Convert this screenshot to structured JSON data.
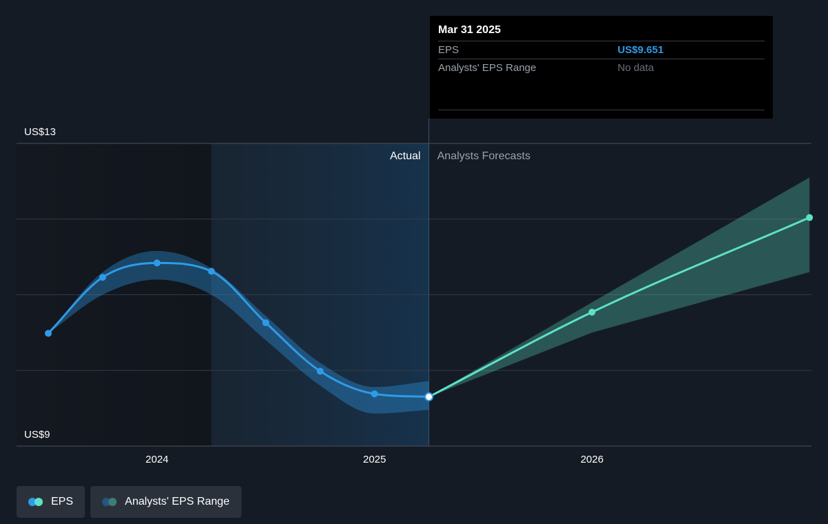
{
  "chart_data": {
    "type": "line",
    "y_axis": {
      "min": 9,
      "max": 13,
      "top_label": "US$13",
      "bottom_label": "US$9"
    },
    "x_axis": {
      "ticks": [
        {
          "label": "2024",
          "t": 2024.0
        },
        {
          "label": "2025",
          "t": 2025.0
        },
        {
          "label": "2026",
          "t": 2026.0
        }
      ]
    },
    "gridlines": [
      13,
      12,
      11,
      10,
      9
    ],
    "region_labels": {
      "actual": "Actual",
      "forecast": "Analysts Forecasts"
    },
    "highlight_start": 2024.25,
    "divider": 2025.25,
    "series": [
      {
        "name": "EPS",
        "kind": "actual",
        "color": "#2f9be8",
        "points": [
          {
            "t": 2023.5,
            "y": 10.49
          },
          {
            "t": 2023.75,
            "y": 11.23
          },
          {
            "t": 2024.0,
            "y": 11.42
          },
          {
            "t": 2024.25,
            "y": 11.31
          },
          {
            "t": 2024.5,
            "y": 10.63
          },
          {
            "t": 2024.75,
            "y": 9.99
          },
          {
            "t": 2025.0,
            "y": 9.69
          },
          {
            "t": 2025.25,
            "y": 9.651
          }
        ]
      },
      {
        "name": "EPS",
        "kind": "forecast",
        "color": "#5ee0c8",
        "points": [
          {
            "t": 2025.25,
            "y": 9.651
          },
          {
            "t": 2026.0,
            "y": 10.77
          },
          {
            "t": 2027.0,
            "y": 12.02
          }
        ]
      }
    ],
    "ranges": [
      {
        "name": "Analysts' EPS Range",
        "kind": "actual",
        "color": "#2f9be8",
        "points": [
          {
            "t": 2023.5,
            "low": 10.49,
            "high": 10.49
          },
          {
            "t": 2023.75,
            "low": 11.0,
            "high": 11.3
          },
          {
            "t": 2024.0,
            "low": 11.2,
            "high": 11.58
          },
          {
            "t": 2024.25,
            "low": 11.0,
            "high": 11.35
          },
          {
            "t": 2024.5,
            "low": 10.4,
            "high": 10.72
          },
          {
            "t": 2024.75,
            "low": 9.8,
            "high": 10.1
          },
          {
            "t": 2025.0,
            "low": 9.43,
            "high": 9.78
          },
          {
            "t": 2025.25,
            "low": 9.48,
            "high": 9.86
          }
        ]
      },
      {
        "name": "Analysts' EPS Range",
        "kind": "forecast",
        "color": "#5ee0c8",
        "points": [
          {
            "t": 2025.25,
            "low": 9.651,
            "high": 9.651
          },
          {
            "t": 2026.0,
            "low": 10.5,
            "high": 10.9
          },
          {
            "t": 2027.0,
            "low": 11.3,
            "high": 12.55
          }
        ]
      }
    ]
  },
  "tooltip": {
    "date": "Mar 31 2025",
    "rows": [
      {
        "label": "EPS",
        "value": "US$9.651"
      },
      {
        "label": "Analysts' EPS Range",
        "value": "No data"
      }
    ]
  },
  "legend": [
    {
      "label": "EPS",
      "colors": [
        "#2f9be8",
        "#5ee0c8"
      ]
    },
    {
      "label": "Analysts' EPS Range",
      "colors": [
        "#25577e",
        "#3f7d74"
      ]
    }
  ]
}
